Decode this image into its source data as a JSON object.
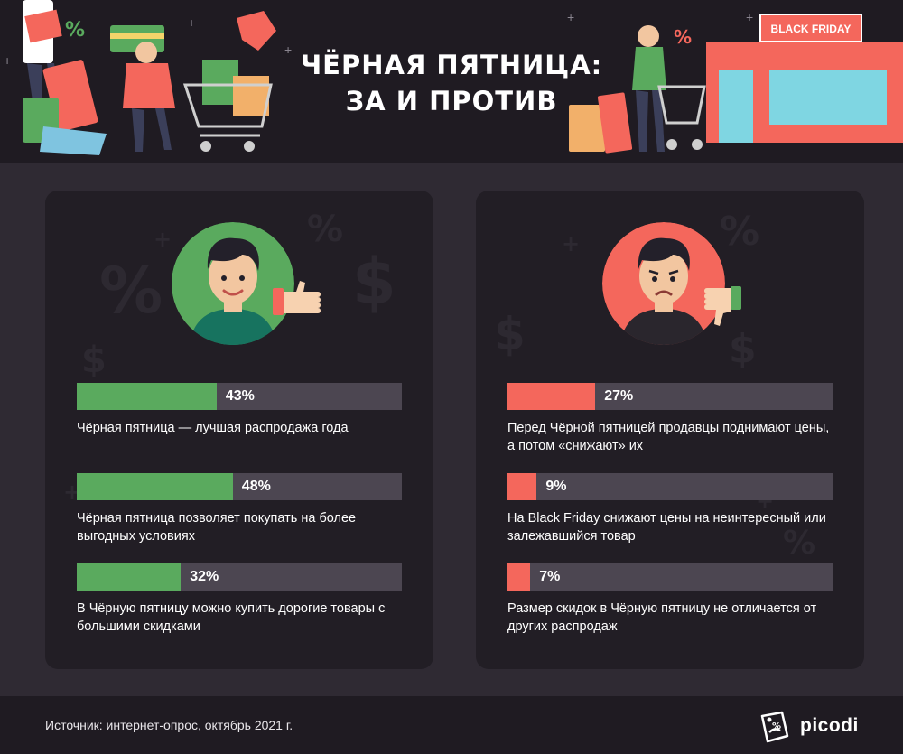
{
  "header": {
    "title_line1": "ЧЁРНАЯ ПЯТНИЦА:",
    "title_line2": "ЗА И ПРОТИВ",
    "sign_text": "BLACK FRIDAY"
  },
  "colors": {
    "pro": "#5aaa5e",
    "contra": "#f4675c",
    "track": "#4c4651",
    "panel": "#221e25",
    "background": "#2f2a33"
  },
  "chart_data": [
    {
      "type": "bar",
      "title": "",
      "categories": [
        "Чёрная пятница — лучшая распродажа года",
        "Чёрная пятница позволяет покупать на более выгодных условиях",
        "В Чёрную пятницу можно купить дорогие товары с большими скидками"
      ],
      "values": [
        43,
        48,
        32
      ],
      "value_labels": [
        "43%",
        "48%",
        "32%"
      ],
      "ylim": [
        0,
        100
      ],
      "color": "#5aaa5e"
    },
    {
      "type": "bar",
      "title": "",
      "categories": [
        "Перед Чёрной пятницей продавцы поднимают цены, а потом «снижают» их",
        "На Black Friday снижают цены на неинтересный или залежавшийся товар",
        "Размер скидок в Чёрную пятницу не отличается от других распродаж"
      ],
      "values": [
        27,
        9,
        7
      ],
      "value_labels": [
        "27%",
        "9%",
        "7%"
      ],
      "ylim": [
        0,
        100
      ],
      "color": "#f4675c"
    }
  ],
  "footer": {
    "source": "Источник: интернет-опрос, октябрь 2021 г.",
    "logo": "picodi"
  }
}
